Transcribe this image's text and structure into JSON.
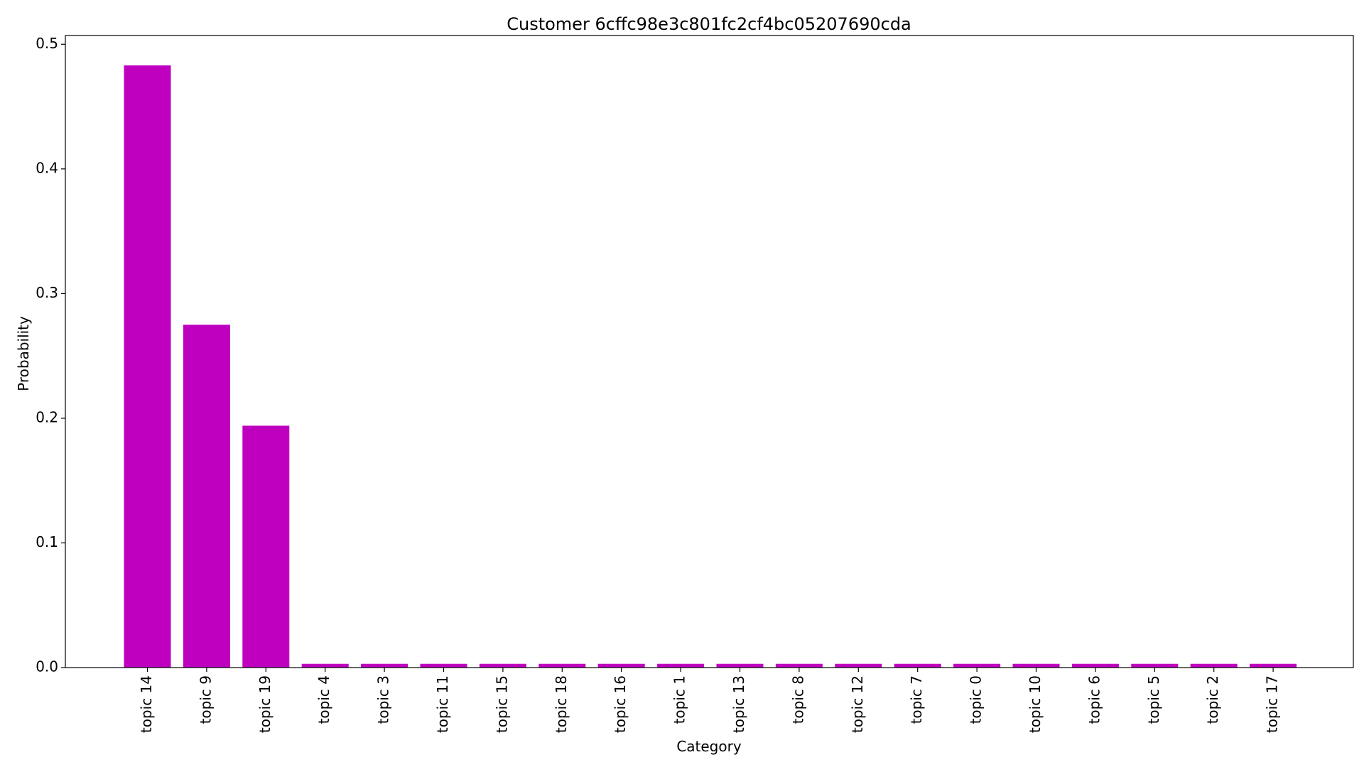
{
  "chart_data": {
    "type": "bar",
    "title": "Customer 6cffc98e3c801fc2cf4bc05207690cda",
    "xlabel": "Category",
    "ylabel": "Probability",
    "categories": [
      "topic 14",
      "topic 9",
      "topic 19",
      "topic 4",
      "topic 3",
      "topic 11",
      "topic 15",
      "topic 18",
      "topic 16",
      "topic 1",
      "topic 13",
      "topic 8",
      "topic 12",
      "topic 7",
      "topic 0",
      "topic 10",
      "topic 6",
      "topic 5",
      "topic 2",
      "topic 17"
    ],
    "values": [
      0.483,
      0.275,
      0.194,
      0.003,
      0.003,
      0.003,
      0.003,
      0.003,
      0.003,
      0.003,
      0.003,
      0.003,
      0.003,
      0.003,
      0.003,
      0.003,
      0.003,
      0.003,
      0.003,
      0.003
    ],
    "ylim": [
      0,
      0.507
    ],
    "yticks": [
      0.0,
      0.1,
      0.2,
      0.3,
      0.4,
      0.5
    ],
    "ytick_labels": [
      "0.0",
      "0.1",
      "0.2",
      "0.3",
      "0.4",
      "0.5"
    ],
    "bar_color": "#bf00bf",
    "grid": false,
    "legend": "none"
  }
}
